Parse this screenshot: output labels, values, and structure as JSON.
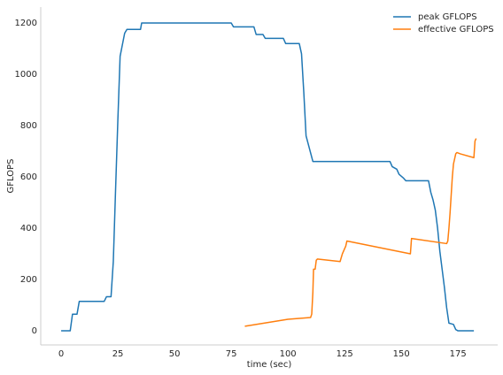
{
  "chart_data": {
    "type": "line",
    "xlabel": "time (sec)",
    "ylabel": "GFLOPS",
    "xlim": [
      -9,
      192.5
    ],
    "ylim": [
      -55,
      1262
    ],
    "xticks": [
      0,
      25,
      50,
      75,
      100,
      125,
      150,
      175
    ],
    "yticks": [
      0,
      200,
      400,
      600,
      800,
      1000,
      1200
    ],
    "grid": false,
    "legend": "upper right",
    "series": [
      {
        "name": "peak GFLOPS",
        "color": "#1f77b4",
        "x": [
          0,
          4,
          5,
          7,
          8,
          19,
          20,
          22,
          23,
          24,
          25,
          26,
          28,
          29,
          35,
          35.5,
          75,
          76,
          85,
          86,
          89,
          90,
          98,
          99,
          105,
          106,
          107,
          108,
          111,
          145,
          146,
          148,
          149,
          151,
          152,
          162,
          163,
          164,
          165,
          166,
          167,
          168,
          169,
          170,
          171,
          173,
          174,
          175,
          182
        ],
        "values": [
          0,
          0,
          65,
          65,
          115,
          115,
          133,
          133,
          270,
          550,
          820,
          1070,
          1160,
          1175,
          1175,
          1200,
          1200,
          1185,
          1185,
          1155,
          1155,
          1140,
          1140,
          1120,
          1120,
          1080,
          930,
          760,
          660,
          660,
          640,
          630,
          610,
          595,
          585,
          585,
          540,
          510,
          470,
          400,
          310,
          240,
          170,
          90,
          30,
          25,
          5,
          0,
          0
        ]
      },
      {
        "name": "effective GFLOPS",
        "color": "#ff7f0e",
        "x": [
          81,
          100,
          110,
          110.5,
          111,
          111.3,
          112,
          112.5,
          113,
          123,
          124,
          125,
          125.5,
          126,
          154,
          154.5,
          170,
          170.5,
          171,
          171.5,
          172,
          172.5,
          173,
          174,
          174.5,
          176,
          182,
          182.5,
          183
        ],
        "values": [
          18,
          45,
          52,
          65,
          150,
          240,
          240,
          275,
          280,
          270,
          300,
          320,
          330,
          350,
          300,
          360,
          340,
          350,
          400,
          460,
          530,
          600,
          650,
          690,
          695,
          690,
          675,
          740,
          750
        ]
      }
    ]
  }
}
